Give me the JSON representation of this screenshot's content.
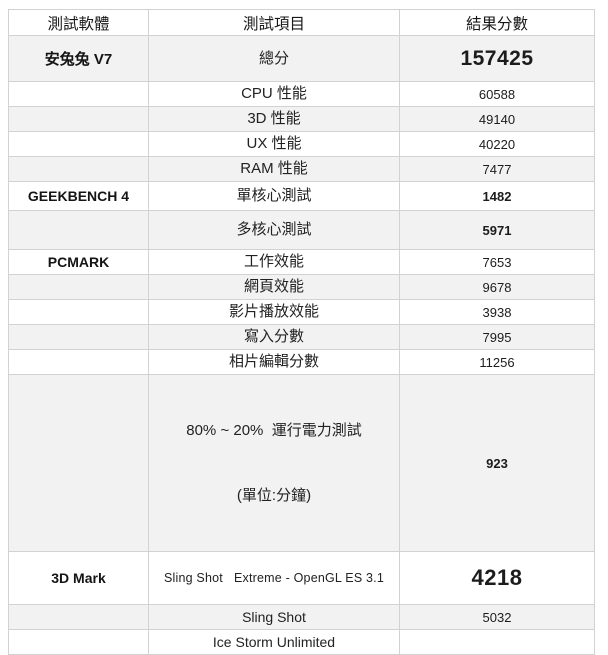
{
  "table": {
    "columns": [
      {
        "label": "測試軟體"
      },
      {
        "label": "測試項目"
      },
      {
        "label": "結果分數"
      }
    ],
    "rows": [
      {
        "software": "安兔兔 V7",
        "item": "總分",
        "score": "157425"
      },
      {
        "software": "",
        "item": "CPU 性能",
        "score": "60588"
      },
      {
        "software": "",
        "item": "3D 性能",
        "score": "49140"
      },
      {
        "software": "",
        "item": "UX 性能",
        "score": "40220"
      },
      {
        "software": "",
        "item": "RAM 性能",
        "score": "7477"
      },
      {
        "software": "GEEKBENCH 4",
        "item": "單核心測試",
        "score": "1482"
      },
      {
        "software": "",
        "item": "多核心測試",
        "score": "5971"
      },
      {
        "software": "PCMARK",
        "item": "工作效能",
        "score": "7653"
      },
      {
        "software": "",
        "item": "網頁效能",
        "score": "9678"
      },
      {
        "software": "",
        "item": "影片播放效能",
        "score": "3938"
      },
      {
        "software": "",
        "item": "寫入分數",
        "score": "7995"
      },
      {
        "software": "",
        "item": "相片編輯分數",
        "score": "11256"
      },
      {
        "software": "",
        "item": "80% ~ 20%  運行電力測試",
        "item_line2": "(單位:分鐘)",
        "score": "923"
      },
      {
        "software": "3D Mark",
        "item": "Sling Shot   Extreme - OpenGL ES 3.1",
        "score": "4218"
      },
      {
        "software": "",
        "item": "Sling Shot",
        "score": "5032"
      },
      {
        "software": "",
        "item": "Ice Storm Unlimited",
        "score": ""
      }
    ],
    "colors": {
      "stripe": "#f2f2f2",
      "border": "#d2d2d2",
      "text": "#1f1f1f"
    }
  }
}
